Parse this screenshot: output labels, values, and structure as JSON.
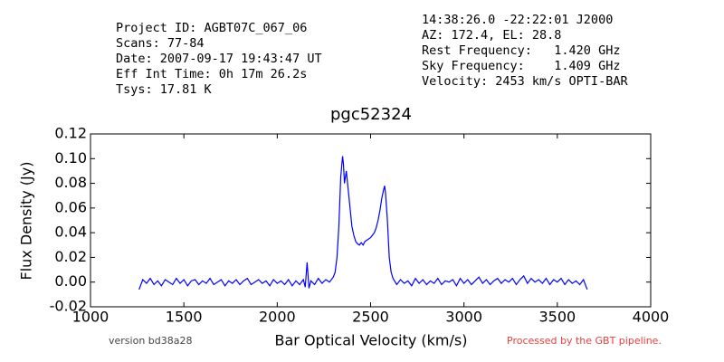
{
  "chart_data": {
    "type": "line",
    "title": "pgc52324",
    "xlabel": "Bar Optical Velocity (km/s)",
    "ylabel": "Flux Density (Jy)",
    "info_left": [
      "Project ID: AGBT07C_067_06",
      "Scans: 77-84",
      "Date: 2007-09-17 19:43:47 UT",
      "Eff Int Time: 0h 17m 26.2s",
      "Tsys: 17.81 K"
    ],
    "info_right": [
      "14:38:26.0 -22:22:01 J2000",
      "AZ: 172.4, EL: 28.8",
      "Rest Frequency:   1.420 GHz",
      "Sky Frequency:    1.409 GHz",
      "Velocity: 2453 km/s OPTI-BAR"
    ],
    "footer_left": "version bd38a28",
    "footer_right": "Processed by the GBT pipeline.",
    "color": "#0000ff",
    "xlim": [
      1000,
      4000
    ],
    "xticks": [
      1000,
      1500,
      2000,
      2500,
      3000,
      3500,
      4000
    ],
    "ylim": [
      -0.02,
      0.12
    ],
    "yticks": [
      -0.02,
      {
        "value": 0,
        "label": "0.00"
      },
      0.02,
      0.04,
      0.06,
      0.08,
      {
        "value": 0.1,
        "label": "0.10"
      },
      0.12
    ],
    "x": [
      1260,
      1280,
      1300,
      1320,
      1340,
      1360,
      1380,
      1400,
      1420,
      1440,
      1460,
      1480,
      1500,
      1520,
      1540,
      1560,
      1580,
      1600,
      1620,
      1640,
      1660,
      1680,
      1700,
      1720,
      1740,
      1760,
      1780,
      1800,
      1820,
      1840,
      1860,
      1880,
      1900,
      1920,
      1940,
      1960,
      1980,
      2000,
      2020,
      2040,
      2060,
      2080,
      2100,
      2120,
      2140,
      2150,
      2160,
      2170,
      2180,
      2200,
      2220,
      2240,
      2260,
      2280,
      2300,
      2310,
      2320,
      2330,
      2340,
      2350,
      2355,
      2360,
      2370,
      2380,
      2390,
      2400,
      2410,
      2420,
      2430,
      2440,
      2450,
      2460,
      2470,
      2480,
      2490,
      2500,
      2510,
      2520,
      2530,
      2540,
      2550,
      2560,
      2570,
      2575,
      2580,
      2590,
      2600,
      2610,
      2620,
      2640,
      2660,
      2680,
      2700,
      2720,
      2740,
      2760,
      2780,
      2800,
      2820,
      2840,
      2860,
      2880,
      2900,
      2920,
      2940,
      2960,
      2980,
      3000,
      3020,
      3040,
      3060,
      3080,
      3100,
      3120,
      3140,
      3160,
      3180,
      3200,
      3220,
      3240,
      3260,
      3280,
      3300,
      3320,
      3340,
      3360,
      3380,
      3400,
      3420,
      3440,
      3460,
      3480,
      3500,
      3520,
      3540,
      3560,
      3580,
      3600,
      3620,
      3640,
      3660
    ],
    "values": [
      -0.006,
      0.002,
      -0.001,
      0.003,
      -0.002,
      0.001,
      -0.003,
      0.002,
      0.0,
      -0.002,
      0.003,
      -0.001,
      0.002,
      -0.003,
      0.001,
      0.002,
      -0.002,
      0.001,
      -0.001,
      0.003,
      -0.002,
      0.0,
      0.002,
      -0.003,
      0.001,
      -0.001,
      0.002,
      -0.002,
      0.001,
      0.003,
      -0.002,
      0.0,
      0.002,
      -0.001,
      0.001,
      -0.003,
      0.002,
      -0.001,
      0.001,
      -0.002,
      0.002,
      -0.003,
      0.001,
      -0.002,
      0.002,
      -0.004,
      0.016,
      -0.005,
      0.001,
      -0.002,
      0.003,
      -0.001,
      0.002,
      0.0,
      0.004,
      0.008,
      0.02,
      0.045,
      0.085,
      0.102,
      0.095,
      0.08,
      0.09,
      0.075,
      0.06,
      0.045,
      0.038,
      0.033,
      0.031,
      0.03,
      0.032,
      0.03,
      0.033,
      0.034,
      0.035,
      0.036,
      0.038,
      0.04,
      0.044,
      0.05,
      0.058,
      0.068,
      0.075,
      0.078,
      0.072,
      0.05,
      0.02,
      0.008,
      0.003,
      -0.002,
      0.002,
      -0.001,
      0.001,
      -0.003,
      0.003,
      -0.001,
      0.002,
      -0.002,
      0.001,
      -0.001,
      0.003,
      -0.002,
      0.001,
      0.0,
      0.002,
      -0.003,
      0.003,
      -0.001,
      0.002,
      -0.002,
      0.001,
      0.004,
      -0.001,
      0.002,
      -0.002,
      0.001,
      0.003,
      -0.001,
      0.002,
      0.0,
      0.003,
      -0.002,
      0.002,
      0.005,
      -0.001,
      0.003,
      0.0,
      0.002,
      -0.001,
      0.003,
      -0.002,
      0.002,
      0.0,
      0.003,
      -0.002,
      0.002,
      -0.001,
      0.001,
      -0.002,
      0.002,
      -0.006
    ]
  }
}
